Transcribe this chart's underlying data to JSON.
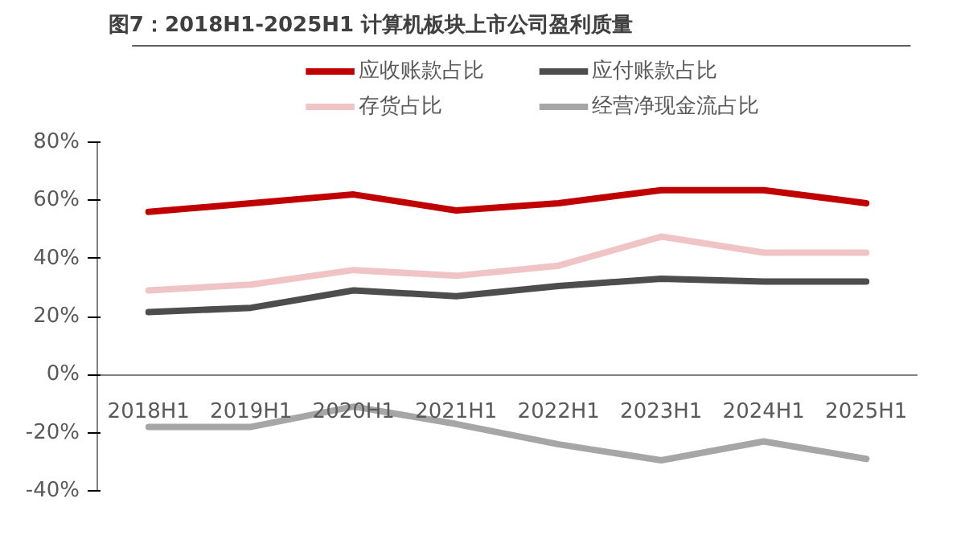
{
  "chart_data": {
    "type": "line",
    "title": "图7：2018H1-2025H1 计算机板块上市公司盈利质量",
    "categories": [
      "2018H1",
      "2019H1",
      "2020H1",
      "2021H1",
      "2022H1",
      "2023H1",
      "2024H1",
      "2025H1"
    ],
    "series": [
      {
        "name": "应收账款占比",
        "color": "#c00000",
        "values": [
          56,
          59,
          62,
          56.5,
          59,
          63.5,
          63.5,
          59
        ]
      },
      {
        "name": "应付账款占比",
        "color": "#4d4d4d",
        "values": [
          21.5,
          23,
          29,
          27,
          30.5,
          33,
          32,
          32
        ]
      },
      {
        "name": "存货占比",
        "color": "#f0c4c4",
        "values": [
          29,
          31,
          36,
          34,
          37.5,
          47.5,
          42,
          42
        ]
      },
      {
        "name": "经营净现金流占比",
        "color": "#a6a6a6",
        "values": [
          -18,
          -18,
          -11,
          -17,
          -24,
          -29.5,
          -23,
          -29
        ]
      }
    ],
    "ylim": [
      -40,
      80
    ],
    "yticks": [
      {
        "value": -40,
        "label": "-40%"
      },
      {
        "value": -20,
        "label": "-20%"
      },
      {
        "value": 0,
        "label": "0%"
      },
      {
        "value": 20,
        "label": "20%"
      },
      {
        "value": 40,
        "label": "40%"
      },
      {
        "value": 60,
        "label": "60%"
      },
      {
        "value": 80,
        "label": "80%"
      }
    ],
    "legend": "top",
    "grid": false,
    "line_style": "solid",
    "marker": "none"
  }
}
